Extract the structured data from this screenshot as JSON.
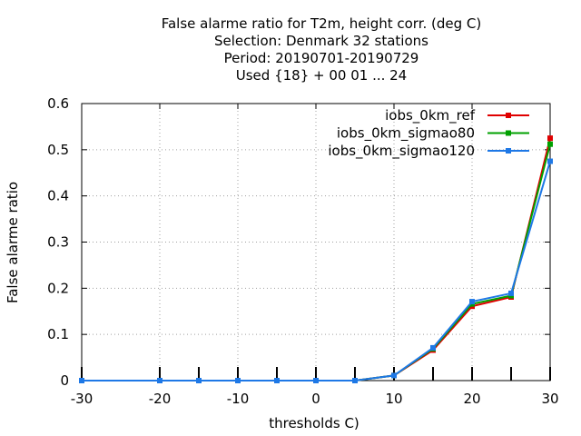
{
  "chart_data": {
    "type": "line",
    "title_lines": [
      "False alarme ratio  for T2m, height corr. (deg C)",
      "Selection: Denmark     32 stations",
      "Period: 20190701-20190729",
      "Used {18} + 00 01 ... 24"
    ],
    "xlabel": "thresholds C)",
    "ylabel": "False alarme ratio",
    "xlim": [
      -30,
      30
    ],
    "ylim": [
      0,
      0.6
    ],
    "x_ticks": [
      "-30",
      "-20",
      "-10",
      "0",
      "10",
      "20",
      "30"
    ],
    "y_ticks": [
      "0",
      "0.1",
      "0.2",
      "0.3",
      "0.4",
      "0.5",
      "0.6"
    ],
    "grid": true,
    "legend_position": "top-right",
    "x": [
      -30,
      -20,
      -15,
      -10,
      -5,
      0,
      5,
      10,
      15,
      20,
      25,
      30
    ],
    "series": [
      {
        "name": "iobs_0km_ref",
        "color": "#e00000",
        "values": [
          0,
          0,
          0,
          0,
          0,
          0,
          0,
          0.011,
          0.066,
          0.161,
          0.181,
          0.525
        ]
      },
      {
        "name": "iobs_0km_sigmao80",
        "color": "#00a000",
        "values": [
          0,
          0,
          0,
          0,
          0,
          0,
          0,
          0.011,
          0.069,
          0.166,
          0.184,
          0.512
        ]
      },
      {
        "name": "iobs_0km_sigmao120",
        "color": "#1e78e6",
        "values": [
          0,
          0,
          0,
          0,
          0,
          0,
          0,
          0.011,
          0.071,
          0.171,
          0.189,
          0.475
        ]
      }
    ]
  }
}
